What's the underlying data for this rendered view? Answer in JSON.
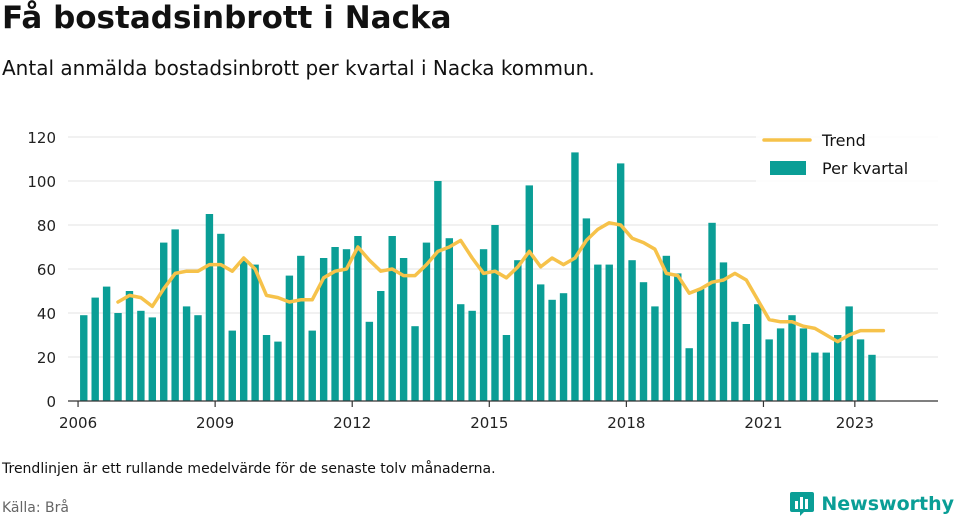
{
  "header": {
    "title": "Få bostadsinbrott i Nacka",
    "subtitle": "Antal anmälda bostadsinbrott per kvartal i Nacka kommun."
  },
  "footer": {
    "note": "Trendlinjen är ett rullande medelvärde för de senaste tolv månaderna.",
    "source": "Källa: Brå",
    "brand": "Newsworthy"
  },
  "colors": {
    "bar": "#0a9e96",
    "trend": "#f6c24a",
    "grid": "#e3e3e3",
    "brand": "#0a9e96"
  },
  "chart_data": {
    "type": "bar",
    "ylim": [
      0,
      120
    ],
    "yticks": [
      0,
      20,
      40,
      60,
      80,
      100,
      120
    ],
    "xticks": [
      "2006",
      "2009",
      "2012",
      "2015",
      "2018",
      "2021",
      "2023"
    ],
    "xlim": [
      "2006-01",
      "2023-12"
    ],
    "grid": true,
    "legend_position": "top-right",
    "legend": {
      "trend": "Trend",
      "bars": "Per kvartal"
    },
    "series": [
      {
        "name": "Per kvartal",
        "type": "bar",
        "x": [
          "2006 Q1",
          "2006 Q2",
          "2006 Q3",
          "2006 Q4",
          "2007 Q1",
          "2007 Q2",
          "2007 Q3",
          "2007 Q4",
          "2008 Q1",
          "2008 Q2",
          "2008 Q3",
          "2008 Q4",
          "2009 Q1",
          "2009 Q2",
          "2009 Q3",
          "2009 Q4",
          "2010 Q1",
          "2010 Q2",
          "2010 Q3",
          "2010 Q4",
          "2011 Q1",
          "2011 Q2",
          "2011 Q3",
          "2011 Q4",
          "2012 Q1",
          "2012 Q2",
          "2012 Q3",
          "2012 Q4",
          "2013 Q1",
          "2013 Q2",
          "2013 Q3",
          "2013 Q4",
          "2014 Q1",
          "2014 Q2",
          "2014 Q3",
          "2014 Q4",
          "2015 Q1",
          "2015 Q2",
          "2015 Q3",
          "2015 Q4",
          "2016 Q1",
          "2016 Q2",
          "2016 Q3",
          "2016 Q4",
          "2017 Q1",
          "2017 Q2",
          "2017 Q3",
          "2017 Q4",
          "2018 Q1",
          "2018 Q2",
          "2018 Q3",
          "2018 Q4",
          "2019 Q1",
          "2019 Q2",
          "2019 Q3",
          "2019 Q4",
          "2020 Q1",
          "2020 Q2",
          "2020 Q3",
          "2020 Q4",
          "2021 Q1",
          "2021 Q2",
          "2021 Q3",
          "2021 Q4",
          "2022 Q1",
          "2022 Q2",
          "2022 Q3",
          "2022 Q4",
          "2023 Q1",
          "2023 Q2"
        ],
        "values": [
          39,
          47,
          52,
          40,
          50,
          41,
          38,
          72,
          78,
          43,
          39,
          85,
          76,
          32,
          64,
          62,
          30,
          27,
          57,
          66,
          32,
          65,
          70,
          69,
          75,
          36,
          50,
          75,
          65,
          34,
          72,
          100,
          74,
          44,
          41,
          69,
          80,
          30,
          64,
          98,
          53,
          46,
          49,
          113,
          83,
          62,
          62,
          108,
          64,
          54,
          43,
          66,
          58,
          24,
          51,
          81,
          63,
          36,
          35,
          44,
          28,
          33,
          39,
          33,
          22,
          22,
          30,
          43,
          28,
          21
        ]
      },
      {
        "name": "Trend",
        "type": "line",
        "x": [
          "2006 Q4",
          "2007 Q1",
          "2007 Q2",
          "2007 Q3",
          "2007 Q4",
          "2008 Q1",
          "2008 Q2",
          "2008 Q3",
          "2008 Q4",
          "2009 Q1",
          "2009 Q2",
          "2009 Q3",
          "2009 Q4",
          "2010 Q1",
          "2010 Q2",
          "2010 Q3",
          "2010 Q4",
          "2011 Q1",
          "2011 Q2",
          "2011 Q3",
          "2011 Q4",
          "2012 Q1",
          "2012 Q2",
          "2012 Q3",
          "2012 Q4",
          "2013 Q1",
          "2013 Q2",
          "2013 Q3",
          "2013 Q4",
          "2014 Q1",
          "2014 Q2",
          "2014 Q3",
          "2014 Q4",
          "2015 Q1",
          "2015 Q2",
          "2015 Q3",
          "2015 Q4",
          "2016 Q1",
          "2016 Q2",
          "2016 Q3",
          "2016 Q4",
          "2017 Q1",
          "2017 Q2",
          "2017 Q3",
          "2017 Q4",
          "2018 Q1",
          "2018 Q2",
          "2018 Q3",
          "2018 Q4",
          "2019 Q1",
          "2019 Q2",
          "2019 Q3",
          "2019 Q4",
          "2020 Q1",
          "2020 Q2",
          "2020 Q3",
          "2020 Q4",
          "2021 Q1",
          "2021 Q2",
          "2021 Q3",
          "2021 Q4",
          "2022 Q1",
          "2022 Q2",
          "2022 Q3",
          "2022 Q4",
          "2023 Q1",
          "2023 Q2",
          "2023 Q3"
        ],
        "values": [
          45,
          48,
          47,
          43,
          51,
          58,
          59,
          59,
          62,
          62,
          59,
          65,
          60,
          48,
          47,
          45,
          46,
          46,
          56,
          59,
          60,
          70,
          64,
          59,
          60,
          57,
          57,
          62,
          68,
          70,
          73,
          65,
          58,
          59,
          56,
          61,
          68,
          61,
          65,
          62,
          65,
          73,
          78,
          81,
          80,
          74,
          72,
          69,
          58,
          57,
          49,
          51,
          54,
          55,
          58,
          55,
          46,
          37,
          36,
          36,
          34,
          33,
          30,
          27,
          30,
          32,
          32,
          32
        ]
      }
    ]
  }
}
